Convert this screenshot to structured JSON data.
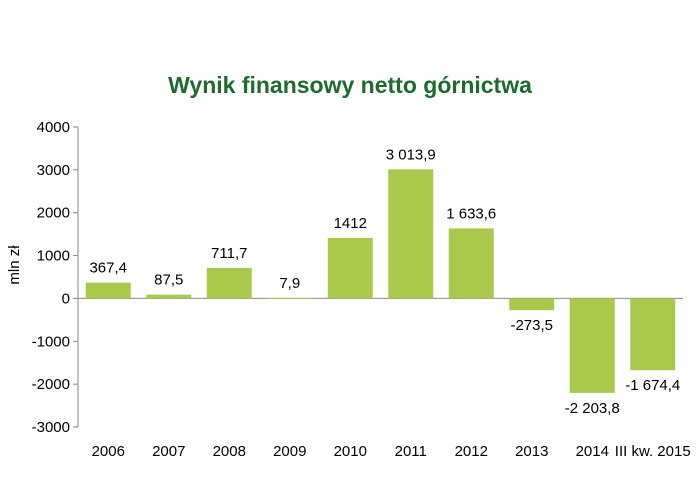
{
  "chart_data": {
    "type": "bar",
    "title": "Wynik finansowy netto górnictwa",
    "xlabel": "",
    "ylabel": "mln zł",
    "categories": [
      "2006",
      "2007",
      "2008",
      "2009",
      "2010",
      "2011",
      "2012",
      "2013",
      "2014",
      "III kw. 2015"
    ],
    "values": [
      367.4,
      87.5,
      711.7,
      7.9,
      1412,
      3013.9,
      1633.6,
      -273.5,
      -2203.8,
      -1674.4
    ],
    "value_labels": [
      "367,4",
      "87,5",
      "711,7",
      "7,9",
      "1412",
      "3 013,9",
      "1 633,6",
      "-273,5",
      "-2 203,8",
      "-1 674,4"
    ],
    "ylim": [
      -3000,
      4000
    ],
    "yticks": [
      4000,
      3000,
      2000,
      1000,
      0,
      -1000,
      -2000,
      -3000
    ],
    "grid": false,
    "legend": "none",
    "colors": {
      "bar": "#a8c94a",
      "title": "#1e6b2e",
      "axis": "#8a8a8a"
    }
  }
}
